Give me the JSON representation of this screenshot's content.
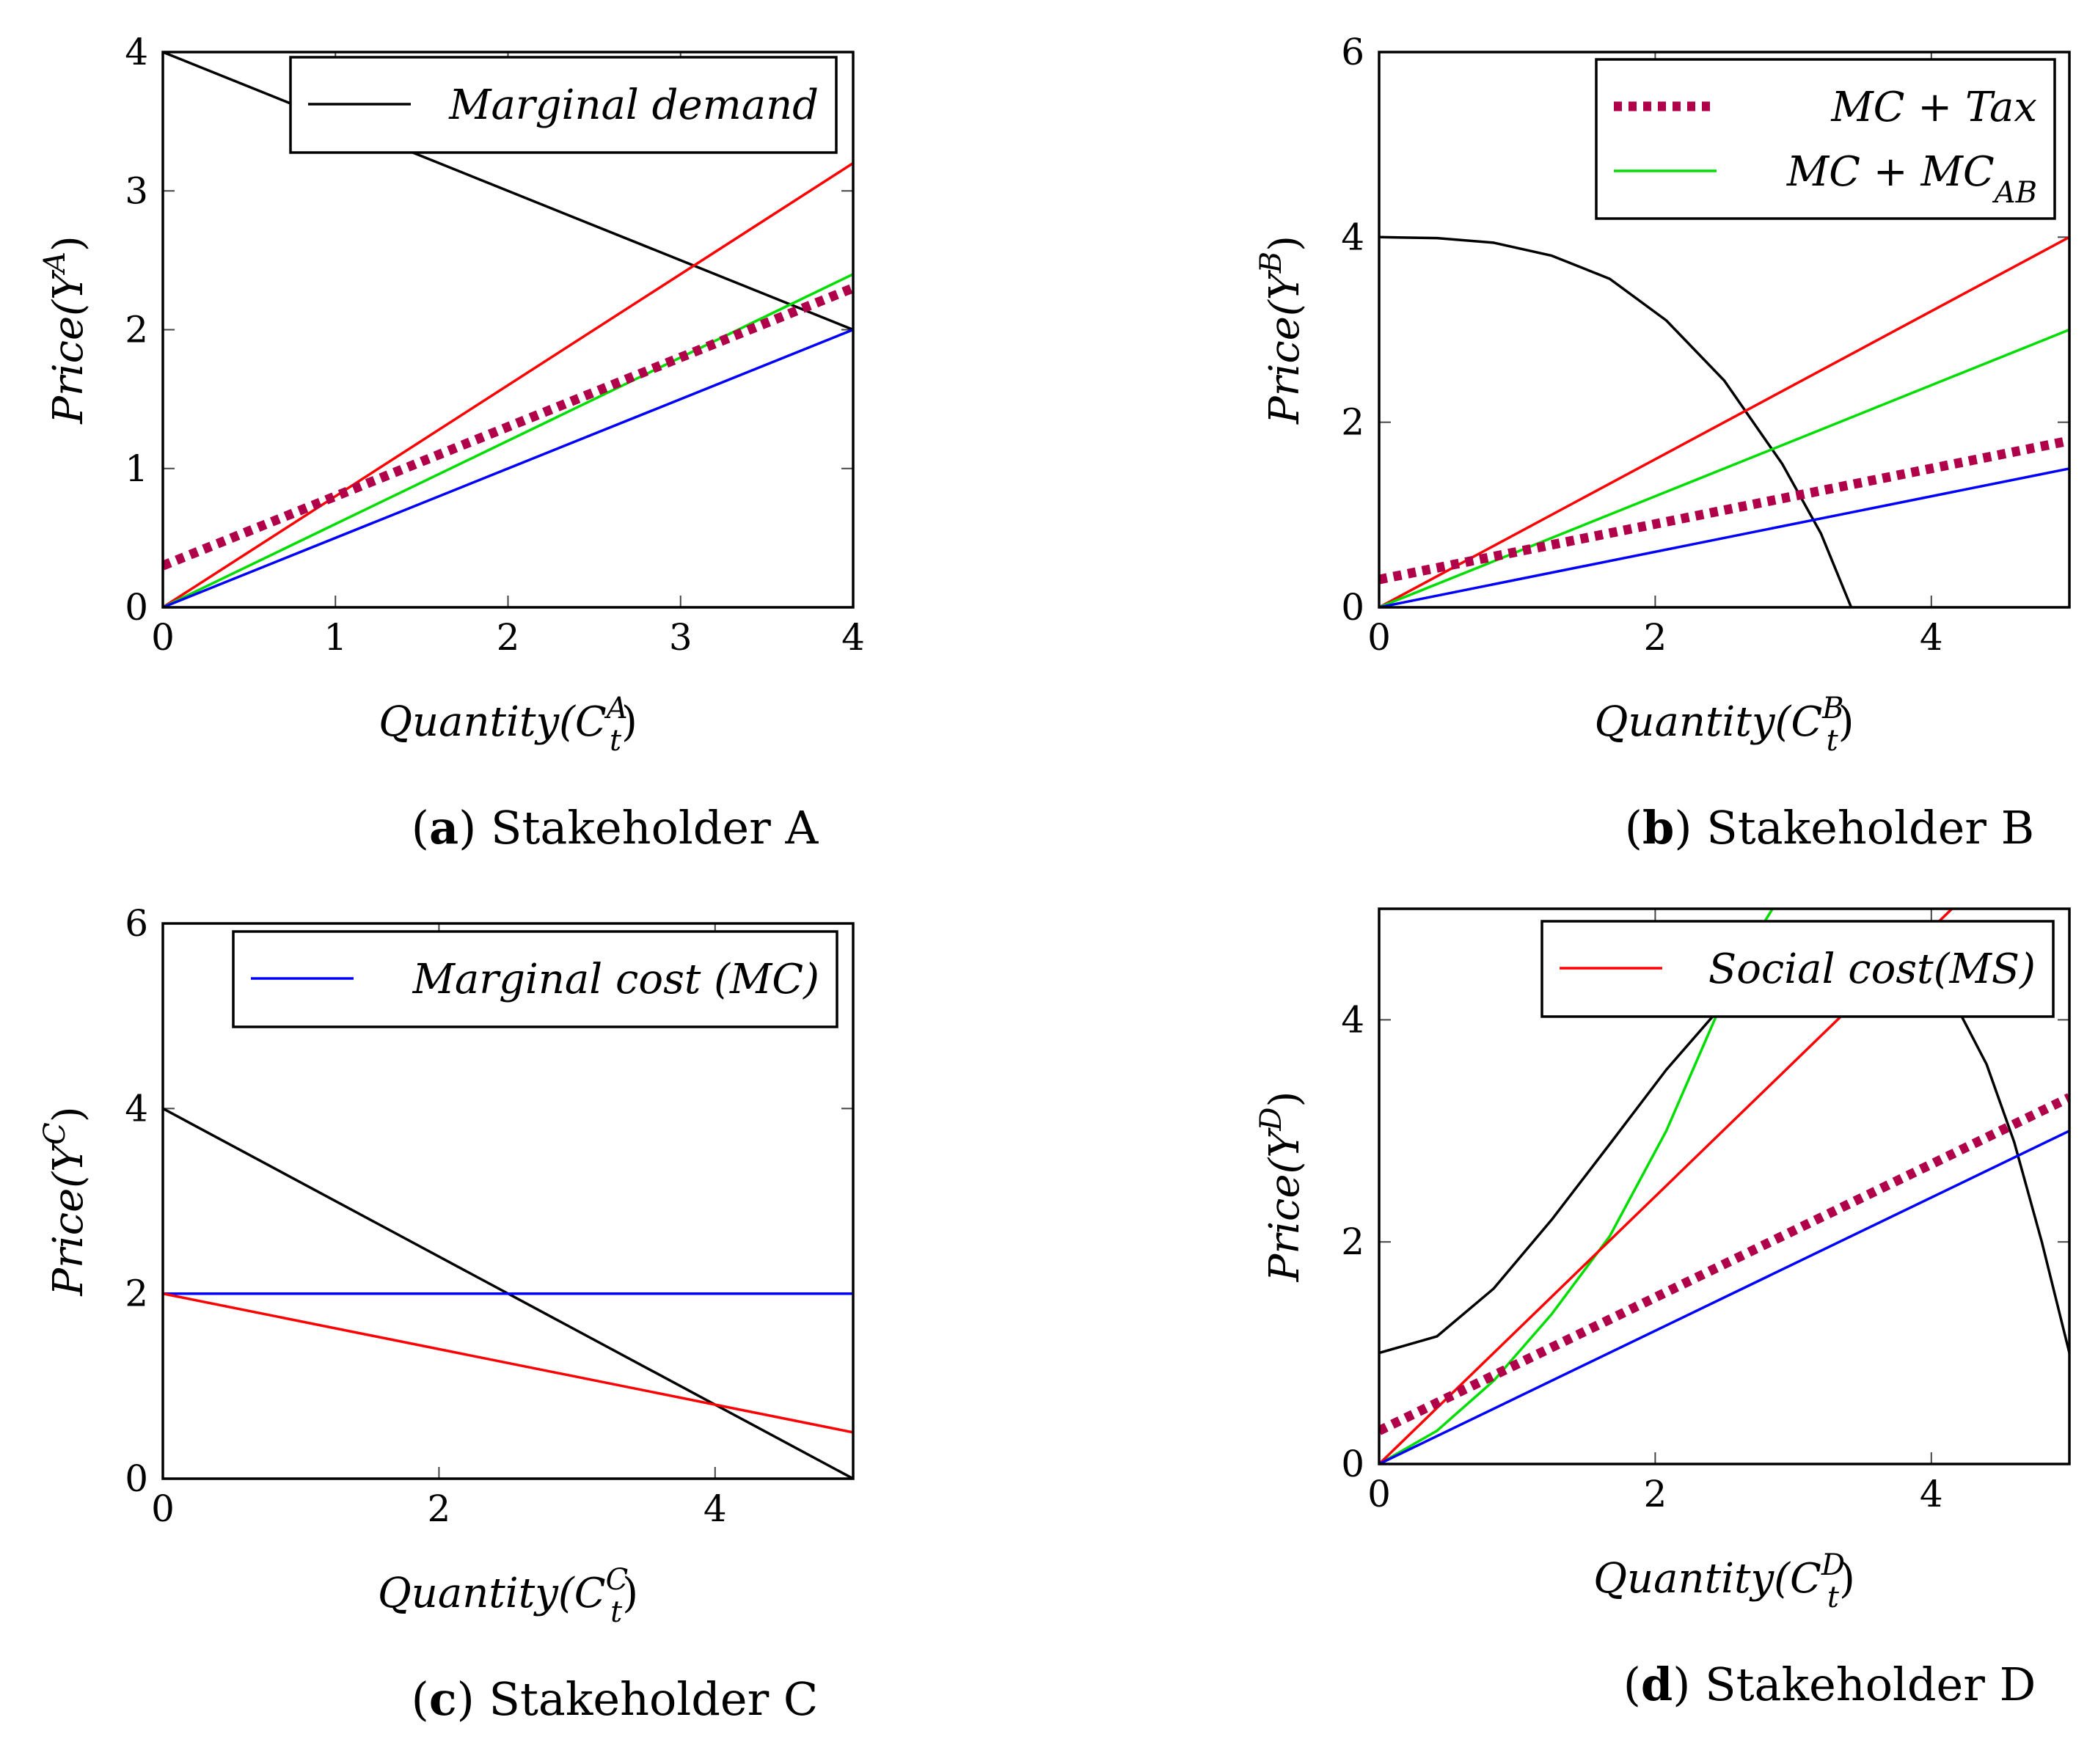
{
  "colors": {
    "demand": "#000000",
    "marginal_cost": "#0000ff",
    "social_cost": "#ff0000",
    "mc_plus_mcab": "#00dd00",
    "mc_plus_tax": "#b0004a"
  },
  "chart_data": [
    {
      "type": "line",
      "panel": "a",
      "caption_letter": "a",
      "caption_text": "Stakeholder A",
      "xlabel": "Quantity(C",
      "xlabel_sup": "A",
      "xlabel_sub": "t",
      "ylabel": "Price(Y",
      "ylabel_sup": "A",
      "xlim": [
        0,
        4
      ],
      "ylim": [
        0,
        4
      ],
      "xticks": [
        0,
        1,
        2,
        3,
        4
      ],
      "yticks": [
        0,
        1,
        2,
        3,
        4
      ],
      "legend": {
        "position": "top-right",
        "entries": [
          {
            "label": "Marginal demand",
            "series": "demand"
          }
        ]
      },
      "series": [
        {
          "key": "demand",
          "style": "solid",
          "points": [
            [
              0,
              4
            ],
            [
              4,
              2
            ]
          ]
        },
        {
          "key": "social_cost",
          "style": "solid",
          "points": [
            [
              0,
              0
            ],
            [
              4,
              3.2
            ]
          ]
        },
        {
          "key": "mc_plus_mcab",
          "style": "solid",
          "points": [
            [
              0,
              0
            ],
            [
              4,
              2.4
            ]
          ]
        },
        {
          "key": "marginal_cost",
          "style": "solid",
          "points": [
            [
              0,
              0
            ],
            [
              4,
              2
            ]
          ]
        },
        {
          "key": "mc_plus_tax",
          "style": "dotted",
          "points": [
            [
              0,
              0.3
            ],
            [
              4,
              2.3
            ]
          ]
        }
      ]
    },
    {
      "type": "line",
      "panel": "b",
      "caption_letter": "b",
      "caption_text": "Stakeholder B",
      "xlabel": "Quantity(C",
      "xlabel_sup": "B",
      "xlabel_sub": "t",
      "ylabel": "Price(Y",
      "ylabel_sup": "B",
      "xlim": [
        0,
        5
      ],
      "ylim": [
        0,
        6
      ],
      "xticks": [
        0,
        2,
        4
      ],
      "yticks": [
        0,
        2,
        4,
        6
      ],
      "legend": {
        "position": "top-right",
        "entries": [
          {
            "label": "MC + Tax",
            "series": "mc_plus_tax"
          },
          {
            "label": "MC + MC",
            "label_sub": "AB",
            "series": "mc_plus_mcab"
          }
        ]
      },
      "series": [
        {
          "key": "demand",
          "style": "solid",
          "points": [
            [
              0,
              4
            ],
            [
              0.42,
              3.99
            ],
            [
              0.83,
              3.94
            ],
            [
              1.25,
              3.8
            ],
            [
              1.67,
              3.55
            ],
            [
              2.08,
              3.1
            ],
            [
              2.5,
              2.45
            ],
            [
              2.92,
              1.55
            ],
            [
              3.2,
              0.8
            ],
            [
              3.42,
              0
            ]
          ]
        },
        {
          "key": "social_cost",
          "style": "solid",
          "points": [
            [
              0,
              0
            ],
            [
              5,
              4
            ]
          ]
        },
        {
          "key": "mc_plus_mcab",
          "style": "solid",
          "points": [
            [
              0,
              0
            ],
            [
              5,
              3
            ]
          ]
        },
        {
          "key": "marginal_cost",
          "style": "solid",
          "points": [
            [
              0,
              0
            ],
            [
              5,
              1.5
            ]
          ]
        },
        {
          "key": "mc_plus_tax",
          "style": "dotted",
          "points": [
            [
              0,
              0.3
            ],
            [
              5,
              1.8
            ]
          ]
        }
      ]
    },
    {
      "type": "line",
      "panel": "c",
      "caption_letter": "c",
      "caption_text": "Stakeholder C",
      "xlabel": "Quantity(C",
      "xlabel_sup": "C",
      "xlabel_sub": "t",
      "ylabel": "Price(Y",
      "ylabel_sup": "C",
      "xlim": [
        0,
        5
      ],
      "ylim": [
        0,
        6
      ],
      "xticks": [
        0,
        2,
        4
      ],
      "yticks": [
        0,
        2,
        4,
        6
      ],
      "legend": {
        "position": "top-right",
        "entries": [
          {
            "label": "Marginal cost (MC)",
            "series": "marginal_cost"
          }
        ]
      },
      "series": [
        {
          "key": "demand",
          "style": "solid",
          "points": [
            [
              0,
              4
            ],
            [
              5,
              0
            ]
          ]
        },
        {
          "key": "marginal_cost",
          "style": "solid",
          "points": [
            [
              0,
              2
            ],
            [
              5,
              2
            ]
          ]
        },
        {
          "key": "social_cost",
          "style": "solid",
          "points": [
            [
              0,
              2
            ],
            [
              5,
              0.5
            ]
          ]
        }
      ]
    },
    {
      "type": "line",
      "panel": "d",
      "caption_letter": "d",
      "caption_text": "Stakeholder D",
      "xlabel": "Quantity(C",
      "xlabel_sup": "D",
      "xlabel_sub": "t",
      "ylabel": "Price(Y",
      "ylabel_sup": "D",
      "xlim": [
        0,
        5
      ],
      "ylim": [
        0,
        5
      ],
      "xticks": [
        0,
        2,
        4
      ],
      "yticks": [
        0,
        2,
        4
      ],
      "legend": {
        "position": "top-right",
        "entries": [
          {
            "label": "Social cost(MS)",
            "series": "social_cost"
          }
        ]
      },
      "series": [
        {
          "key": "demand",
          "style": "solid",
          "points": [
            [
              0,
              1
            ],
            [
              0.42,
              1.15
            ],
            [
              0.83,
              1.58
            ],
            [
              1.25,
              2.2
            ],
            [
              1.67,
              2.88
            ],
            [
              2.08,
              3.55
            ],
            [
              2.5,
              4.15
            ],
            [
              2.92,
              4.6
            ],
            [
              3.33,
              4.72
            ],
            [
              3.75,
              4.55
            ],
            [
              4.17,
              4.15
            ],
            [
              4.4,
              3.6
            ],
            [
              4.6,
              2.9
            ],
            [
              4.8,
              2.0
            ],
            [
              5,
              1.0
            ]
          ]
        },
        {
          "key": "mc_plus_mcab",
          "style": "solid",
          "points": [
            [
              0,
              0
            ],
            [
              0.42,
              0.3
            ],
            [
              0.83,
              0.75
            ],
            [
              1.25,
              1.35
            ],
            [
              1.67,
              2.05
            ],
            [
              2.08,
              3.0
            ],
            [
              2.5,
              4.2
            ],
            [
              2.75,
              4.8
            ],
            [
              2.85,
              5.0
            ]
          ]
        },
        {
          "key": "social_cost",
          "style": "solid",
          "points": [
            [
              0,
              0
            ],
            [
              4.15,
              5
            ]
          ]
        },
        {
          "key": "marginal_cost",
          "style": "solid",
          "points": [
            [
              0,
              0
            ],
            [
              5,
              3
            ]
          ]
        },
        {
          "key": "mc_plus_tax",
          "style": "dotted",
          "points": [
            [
              0,
              0.3
            ],
            [
              5,
              3.3
            ]
          ]
        }
      ]
    }
  ]
}
